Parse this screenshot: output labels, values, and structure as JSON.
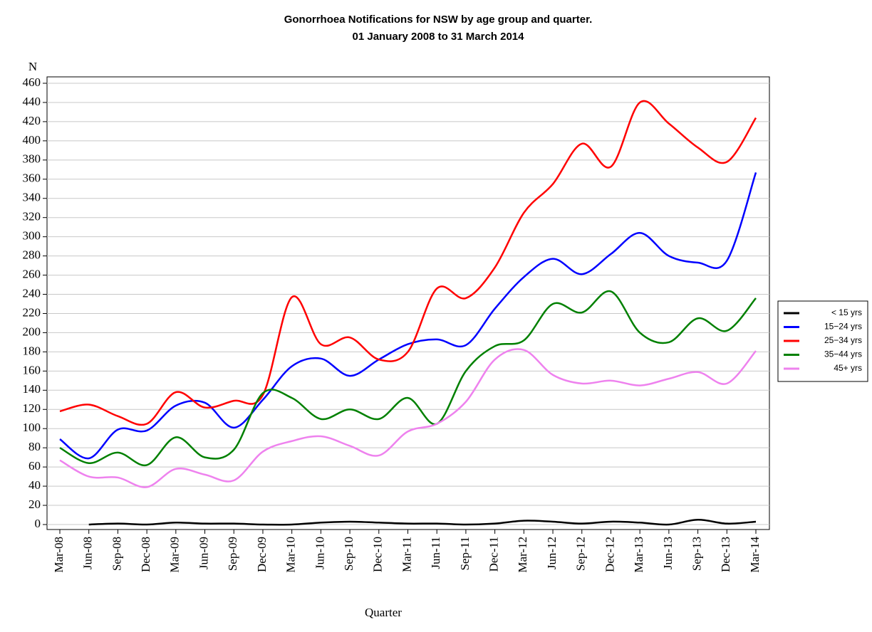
{
  "chart_data": {
    "type": "line",
    "title": "Gonorrhoea Notifications for NSW by age group and quarter.",
    "subtitle": "01 January 2008 to 31 March 2014",
    "y_label": "N",
    "x_label": "Quarter",
    "categories": [
      "Mar-08",
      "Jun-08",
      "Sep-08",
      "Dec-08",
      "Mar-09",
      "Jun-09",
      "Sep-09",
      "Dec-09",
      "Mar-10",
      "Jun-10",
      "Sep-10",
      "Dec-10",
      "Mar-11",
      "Jun-11",
      "Sep-11",
      "Dec-11",
      "Mar-12",
      "Jun-12",
      "Sep-12",
      "Dec-12",
      "Mar-13",
      "Jun-13",
      "Sep-13",
      "Dec-13",
      "Mar-14"
    ],
    "series": [
      {
        "name": "< 15 yrs",
        "color": "#000000",
        "values": [
          null,
          0,
          1,
          0,
          2,
          1,
          1,
          0,
          0,
          2,
          3,
          2,
          1,
          1,
          0,
          1,
          4,
          3,
          1,
          3,
          2,
          0,
          5,
          1,
          3
        ]
      },
      {
        "name": "15−24 yrs",
        "color": "#0000ff",
        "values": [
          89,
          69,
          99,
          98,
          124,
          127,
          101,
          130,
          165,
          173,
          155,
          172,
          188,
          193,
          187,
          225,
          258,
          277,
          261,
          282,
          304,
          280,
          273,
          275,
          367
        ]
      },
      {
        "name": "25−34 yrs",
        "color": "#ff0000",
        "values": [
          118,
          125,
          113,
          105,
          138,
          122,
          129,
          135,
          237,
          188,
          195,
          172,
          180,
          246,
          236,
          268,
          325,
          355,
          397,
          373,
          440,
          418,
          393,
          378,
          424
        ]
      },
      {
        "name": "35−44 yrs",
        "color": "#008000",
        "values": [
          80,
          64,
          75,
          62,
          91,
          70,
          78,
          137,
          132,
          110,
          120,
          110,
          132,
          105,
          160,
          186,
          192,
          230,
          221,
          243,
          200,
          190,
          215,
          202,
          236
        ]
      },
      {
        "name": "45+ yrs",
        "color": "#ee82ee",
        "values": [
          67,
          50,
          49,
          39,
          58,
          52,
          46,
          76,
          87,
          92,
          82,
          72,
          97,
          105,
          128,
          172,
          182,
          156,
          147,
          150,
          145,
          152,
          159,
          147,
          181
        ]
      }
    ],
    "ylim": [
      0,
      460
    ],
    "yticks": [
      0,
      20,
      40,
      60,
      80,
      100,
      120,
      140,
      160,
      180,
      200,
      220,
      240,
      260,
      280,
      300,
      320,
      340,
      360,
      380,
      400,
      420,
      440,
      460
    ],
    "grid": true,
    "legend": "right"
  }
}
